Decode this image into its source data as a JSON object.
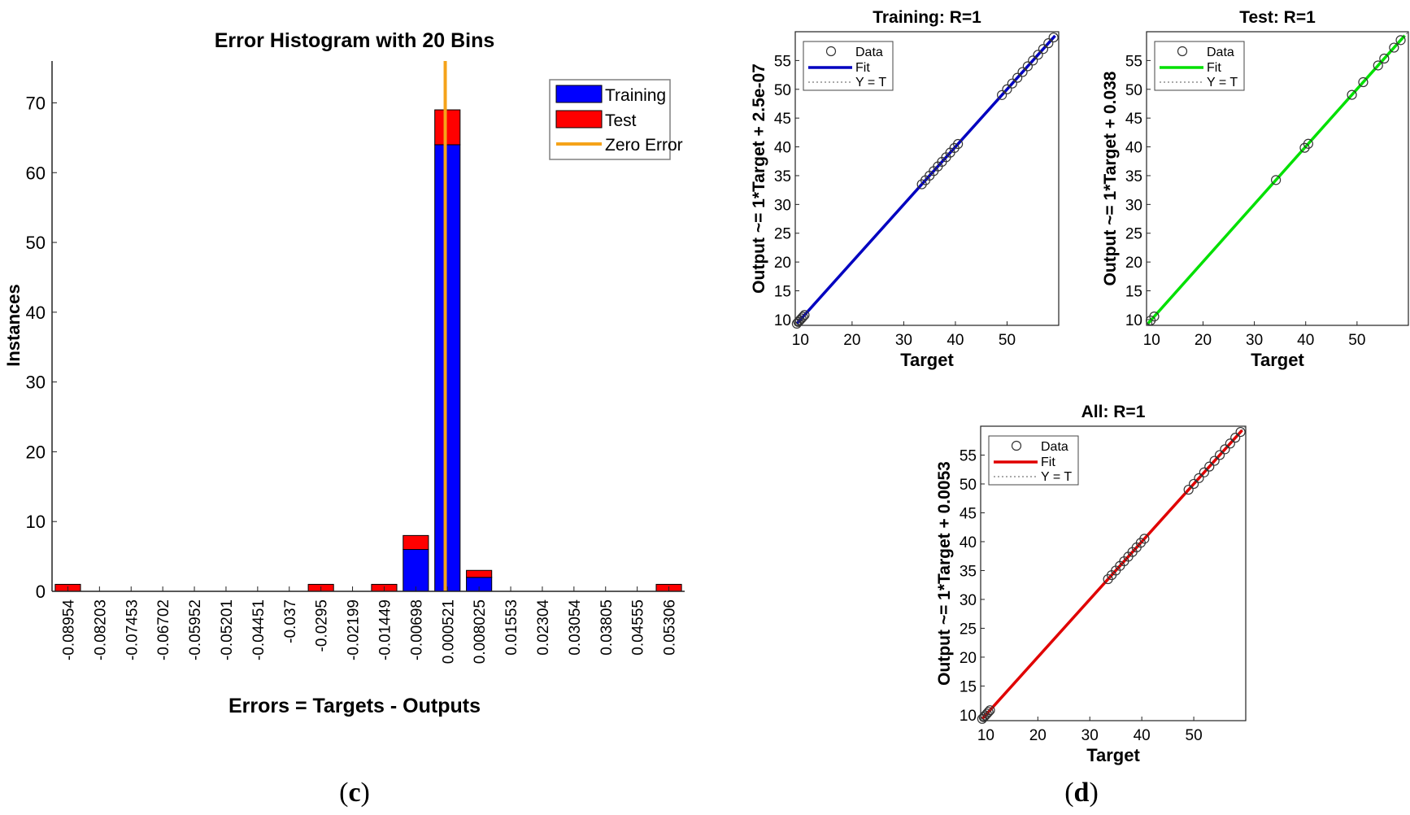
{
  "panel_labels": {
    "c": "(c)",
    "d": "(d)"
  },
  "histogram": {
    "title": "Error Histogram with 20 Bins",
    "xlabel": "Errors = Targets - Outputs",
    "ylabel": "Instances",
    "yticks": [
      "0",
      "10",
      "20",
      "30",
      "40",
      "50",
      "60",
      "70"
    ],
    "legend": {
      "training": "Training",
      "test": "Test",
      "zero": "Zero Error"
    },
    "colors": {
      "training": "#0000ff",
      "test": "#ff0000",
      "zero": "#f5a31a"
    }
  },
  "regression": {
    "xlabel": "Target",
    "xticks": [
      "10",
      "20",
      "30",
      "40",
      "50"
    ],
    "yticks": [
      "10",
      "15",
      "20",
      "25",
      "30",
      "35",
      "40",
      "45",
      "50",
      "55"
    ],
    "legend": {
      "data": "Data",
      "fit": "Fit",
      "yt": "Y = T"
    },
    "plots": [
      {
        "title": "Training: R=1",
        "ylabel": "Output ~= 1*Target + 2.5e-07",
        "fit_color": "#0000c0"
      },
      {
        "title": "Test: R=1",
        "ylabel": "Output ~= 1*Target + 0.038",
        "fit_color": "#00e000"
      },
      {
        "title": "All: R=1",
        "ylabel": "Output ~= 1*Target + 0.0053",
        "fit_color": "#e00000"
      }
    ]
  },
  "chart_data": [
    {
      "type": "bar",
      "title": "Error Histogram with 20 Bins",
      "xlabel": "Errors = Targets - Outputs",
      "ylabel": "Instances",
      "stacked": true,
      "categories": [
        "-0.08954",
        "-0.08203",
        "-0.07453",
        "-0.06702",
        "-0.05952",
        "-0.05201",
        "-0.04451",
        "-0.037",
        "-0.0295",
        "-0.02199",
        "-0.01449",
        "-0.00698",
        "0.000521",
        "0.008025",
        "0.01553",
        "0.02304",
        "0.03054",
        "0.03805",
        "0.04555",
        "0.05306"
      ],
      "series": [
        {
          "name": "Training",
          "values": [
            0,
            0,
            0,
            0,
            0,
            0,
            0,
            0,
            0,
            0,
            0,
            6,
            64,
            2,
            0,
            0,
            0,
            0,
            0,
            0
          ]
        },
        {
          "name": "Test",
          "values": [
            1,
            0,
            0,
            0,
            0,
            0,
            0,
            0,
            1,
            0,
            1,
            2,
            5,
            1,
            0,
            0,
            0,
            0,
            0,
            1
          ]
        }
      ],
      "reference_line": {
        "name": "Zero Error",
        "x": 0
      },
      "ylim": [
        0,
        76
      ],
      "grid": false,
      "legend_position": "top-right"
    },
    {
      "type": "scatter",
      "title": "Training: R=1",
      "xlabel": "Target",
      "ylabel": "Output ~= 1*Target + 2.5e-07",
      "xlim": [
        9,
        60
      ],
      "ylim": [
        9,
        60
      ],
      "fit": {
        "slope": 1,
        "intercept": 2.5e-07
      },
      "series": [
        {
          "name": "Data",
          "x": [
            9.3,
            9.6,
            9.9,
            10.2,
            10.5,
            10.8,
            33.5,
            34.2,
            35,
            35.8,
            36.6,
            37.4,
            38.2,
            39,
            39.8,
            40.5,
            49,
            50,
            51,
            52,
            53,
            54,
            55,
            56,
            57,
            58,
            59
          ]
        },
        {
          "name": "Fit"
        },
        {
          "name": "Y = T"
        }
      ],
      "legend_position": "top-left"
    },
    {
      "type": "scatter",
      "title": "Test: R=1",
      "xlabel": "Target",
      "ylabel": "Output ~= 1*Target + 0.038",
      "xlim": [
        9,
        60
      ],
      "ylim": [
        9,
        60
      ],
      "fit": {
        "slope": 1,
        "intercept": 0.038
      },
      "series": [
        {
          "name": "Data",
          "x": [
            9.8,
            10.5,
            34.2,
            39.8,
            40.5,
            49,
            51.2,
            54.1,
            55.3,
            57.2,
            58.5
          ]
        },
        {
          "name": "Fit"
        },
        {
          "name": "Y = T"
        }
      ],
      "legend_position": "top-left"
    },
    {
      "type": "scatter",
      "title": "All: R=1",
      "xlabel": "Target",
      "ylabel": "Output ~= 1*Target + 0.0053",
      "xlim": [
        9,
        60
      ],
      "ylim": [
        9,
        60
      ],
      "fit": {
        "slope": 1,
        "intercept": 0.0053
      },
      "series": [
        {
          "name": "Data",
          "x": [
            9.3,
            9.6,
            9.9,
            10.2,
            10.5,
            10.8,
            33.5,
            34.2,
            35,
            35.8,
            36.6,
            37.4,
            38.2,
            39,
            39.8,
            40.5,
            49,
            50,
            51,
            52,
            53,
            54,
            55,
            56,
            57,
            58,
            59
          ]
        },
        {
          "name": "Fit"
        },
        {
          "name": "Y = T"
        }
      ],
      "legend_position": "top-left"
    }
  ]
}
